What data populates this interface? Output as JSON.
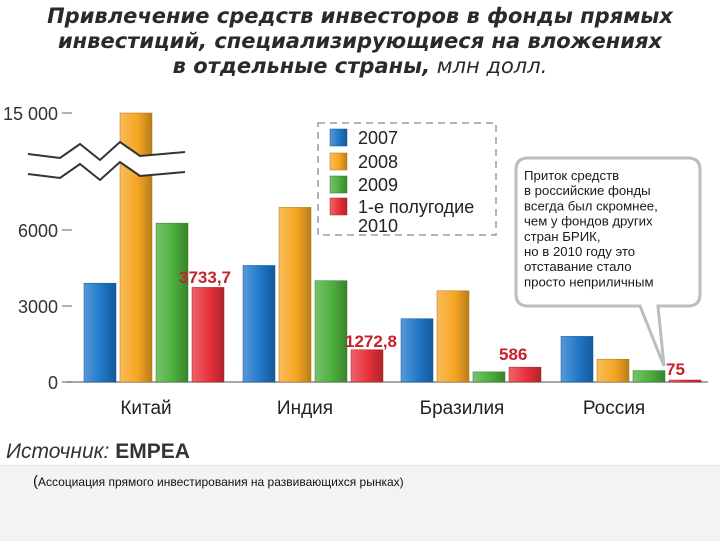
{
  "title": {
    "line1": "Привлечение средств инвесторов в фонды прямых",
    "line2": "инвестиций, специализирующиеся на вложениях",
    "line3": "в отдельные страны,",
    "unit": " млн долл."
  },
  "chart_data": {
    "type": "bar",
    "categories": [
      "Китай",
      "Индия",
      "Бразилия",
      "Россия"
    ],
    "series": [
      {
        "name": "2007",
        "color": "#1f77c9",
        "values": [
          3900,
          4600,
          2500,
          1800
        ]
      },
      {
        "name": "2008",
        "color": "#f5a623",
        "values": [
          15000,
          7800,
          3600,
          900
        ]
      },
      {
        "name": "2009",
        "color": "#4cae3c",
        "values": [
          6600,
          4000,
          400,
          450
        ]
      },
      {
        "name": "1-е полугодие 2010",
        "color": "#e8303a",
        "values": [
          3733.7,
          1272.8,
          586,
          75
        ]
      }
    ],
    "data_labels": [
      "3733,7",
      "1272,8",
      "586",
      "75"
    ],
    "y_ticks": [
      0,
      3000,
      6000,
      15000
    ],
    "y_tick_labels": [
      "0",
      "3000",
      "6000",
      "15 000"
    ],
    "axis_break": "between 6000 and 15000",
    "legend": [
      "2007",
      "2008",
      "2009",
      "1-е полугодие 2010"
    ],
    "legend_placement": "top-center",
    "grid": false,
    "callout": [
      "Приток средств",
      "в российские фонды",
      "всегда был скромнее,",
      "чем у фондов других",
      "стран БРИК,",
      "но в 2010 году это",
      "отставание стало",
      "просто неприличным"
    ]
  },
  "source": {
    "prefix": "Источник:",
    "name": "EMPEA"
  },
  "footnote": {
    "open": "(",
    "text": "Ассоциация прямого инвестирования на развивающихся рынках)"
  }
}
